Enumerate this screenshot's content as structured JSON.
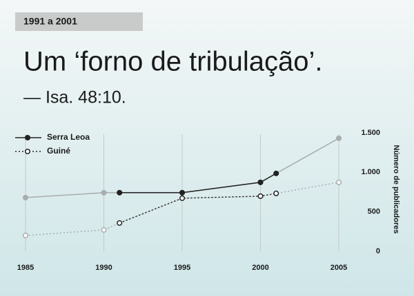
{
  "chart_data": {
    "type": "line",
    "header": "1991 a 2001",
    "title": "Um ‘forno de tribulação’.",
    "subtitle": "— Isa. 48:10.",
    "y_axis_label": "Número de publicadores",
    "x": [
      1985,
      1990,
      1991,
      1995,
      2000,
      2001,
      2005
    ],
    "xlim": [
      1985,
      2005
    ],
    "xticks": [
      1985,
      1990,
      1995,
      2000,
      2005
    ],
    "ylim": [
      0,
      1500
    ],
    "yticks": [
      0,
      500,
      {
        "value": 1000,
        "label": "1.000"
      },
      {
        "value": 1500,
        "label": "1.500"
      }
    ],
    "highlight_xlim": [
      1991,
      2001
    ],
    "muted_color": "#a9adad",
    "grid": true,
    "legend": "top-left",
    "series": [
      {
        "name": "Serra Leoa",
        "color": "#222222",
        "line_style": "solid",
        "marker": "filled",
        "values": [
          680,
          742,
          742,
          742,
          873,
          986,
          1431
        ]
      },
      {
        "name": "Guiné",
        "color": "#222222",
        "line_style": "dotted",
        "marker": "hollow",
        "values": [
          200,
          270,
          358,
          672,
          698,
          733,
          873
        ]
      }
    ]
  }
}
